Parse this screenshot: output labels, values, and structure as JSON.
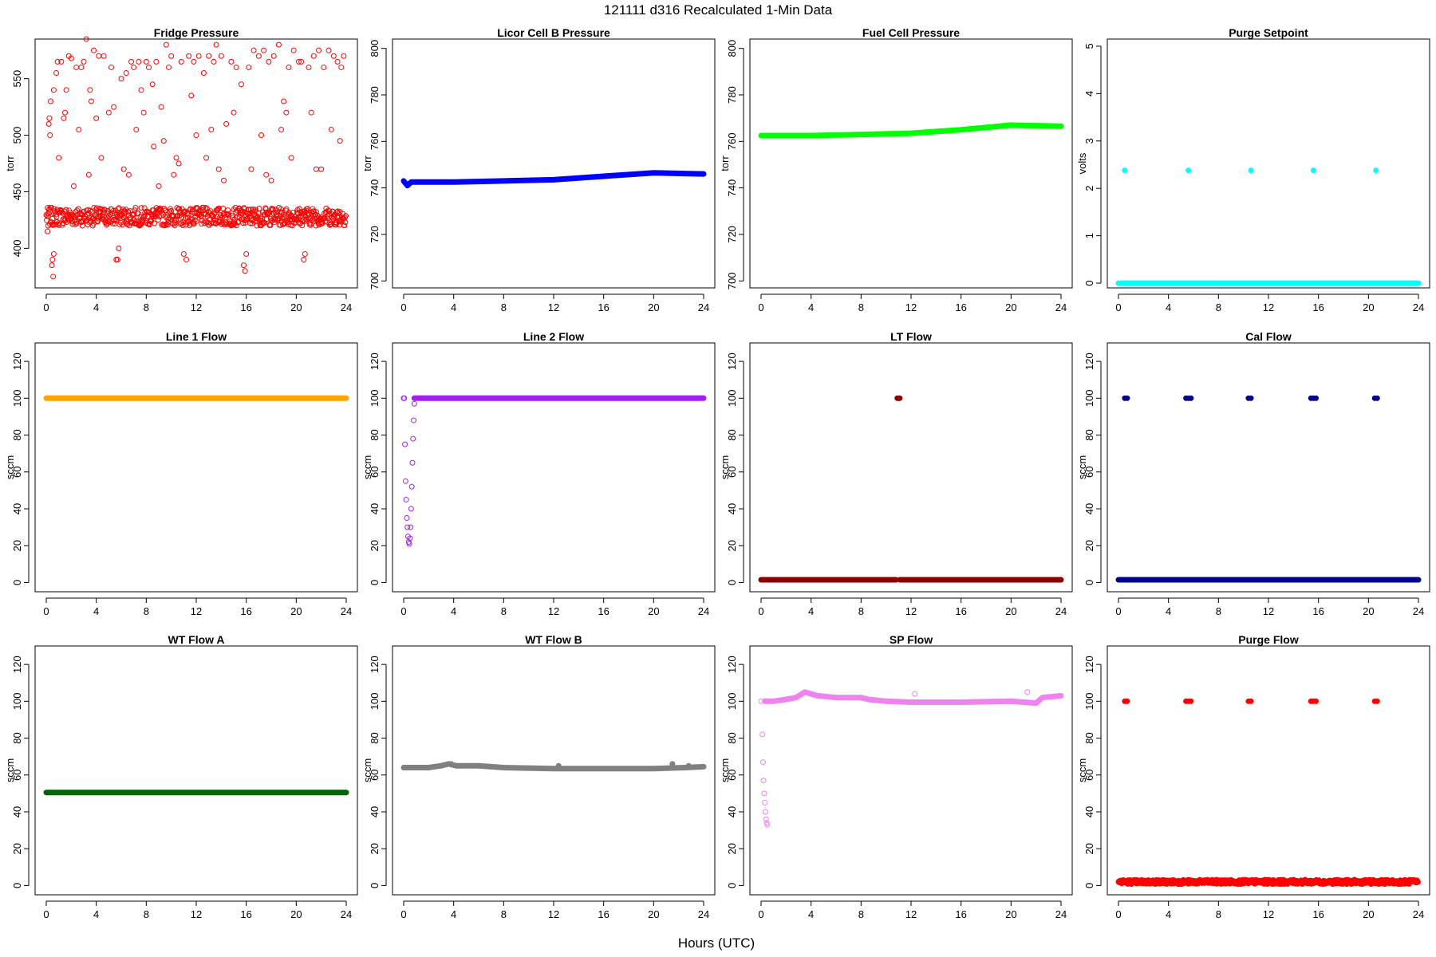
{
  "figure": {
    "title": "121111    d316    Recalculated 1-Min Data",
    "xlabel": "Hours (UTC)"
  },
  "chart_data": [
    {
      "type": "scatter",
      "title": "Fridge Pressure",
      "ylabel": "torr",
      "color": "#ff0000",
      "marker": "open",
      "xlim": [
        0,
        24
      ],
      "ylim": [
        365,
        585
      ],
      "xticks": [
        0,
        4,
        8,
        12,
        16,
        20,
        24
      ],
      "yticks": [
        400,
        450,
        500,
        550
      ],
      "segments": [
        {
          "x0": 0,
          "x1": 24,
          "y": 428,
          "spread": 8
        }
      ],
      "points": [
        [
          0.1,
          415
        ],
        [
          0.15,
          420
        ],
        [
          0.2,
          510
        ],
        [
          0.25,
          515
        ],
        [
          0.3,
          500
        ],
        [
          0.35,
          530
        ],
        [
          0.45,
          385
        ],
        [
          0.5,
          390
        ],
        [
          0.55,
          375
        ],
        [
          0.6,
          395
        ],
        [
          0.6,
          540
        ],
        [
          0.8,
          555
        ],
        [
          0.9,
          565
        ],
        [
          1.2,
          565
        ],
        [
          1.5,
          520
        ],
        [
          1.6,
          540
        ],
        [
          1.8,
          570
        ],
        [
          2.0,
          568
        ],
        [
          2.4,
          560
        ],
        [
          2.8,
          560
        ],
        [
          3.0,
          565
        ],
        [
          3.2,
          585
        ],
        [
          3.5,
          540
        ],
        [
          3.8,
          575
        ],
        [
          4.0,
          515
        ],
        [
          4.2,
          570
        ],
        [
          4.6,
          570
        ],
        [
          5.0,
          520
        ],
        [
          5.2,
          560
        ],
        [
          5.6,
          390
        ],
        [
          5.7,
          390
        ],
        [
          5.8,
          400
        ],
        [
          6.0,
          550
        ],
        [
          6.4,
          555
        ],
        [
          6.8,
          565
        ],
        [
          7.0,
          560
        ],
        [
          7.4,
          565
        ],
        [
          7.8,
          520
        ],
        [
          8.0,
          565
        ],
        [
          8.2,
          560
        ],
        [
          8.5,
          545
        ],
        [
          8.8,
          565
        ],
        [
          9.2,
          525
        ],
        [
          9.6,
          580
        ],
        [
          9.8,
          560
        ],
        [
          10.0,
          570
        ],
        [
          10.4,
          480
        ],
        [
          10.8,
          565
        ],
        [
          11.2,
          390
        ],
        [
          11.0,
          395
        ],
        [
          11.4,
          570
        ],
        [
          11.8,
          565
        ],
        [
          12.2,
          570
        ],
        [
          12.6,
          555
        ],
        [
          13.0,
          570
        ],
        [
          13.4,
          565
        ],
        [
          13.6,
          580
        ],
        [
          14.0,
          570
        ],
        [
          14.4,
          510
        ],
        [
          14.8,
          565
        ],
        [
          15.2,
          560
        ],
        [
          15.8,
          385
        ],
        [
          15.9,
          380
        ],
        [
          16.0,
          395
        ],
        [
          16.2,
          560
        ],
        [
          16.6,
          575
        ],
        [
          17.0,
          570
        ],
        [
          17.4,
          575
        ],
        [
          17.8,
          565
        ],
        [
          18.2,
          570
        ],
        [
          18.6,
          580
        ],
        [
          19.0,
          530
        ],
        [
          19.4,
          560
        ],
        [
          19.8,
          575
        ],
        [
          20.2,
          565
        ],
        [
          20.4,
          565
        ],
        [
          20.6,
          390
        ],
        [
          20.7,
          395
        ],
        [
          21.0,
          560
        ],
        [
          21.4,
          570
        ],
        [
          21.8,
          575
        ],
        [
          22.2,
          560
        ],
        [
          22.6,
          575
        ],
        [
          23.0,
          570
        ],
        [
          23.3,
          565
        ],
        [
          23.6,
          560
        ],
        [
          23.8,
          570
        ],
        [
          1.0,
          480
        ],
        [
          2.2,
          455
        ],
        [
          2.6,
          505
        ],
        [
          3.6,
          530
        ],
        [
          4.4,
          480
        ],
        [
          6.2,
          470
        ],
        [
          7.2,
          505
        ],
        [
          8.6,
          490
        ],
        [
          9.0,
          455
        ],
        [
          9.4,
          495
        ],
        [
          10.6,
          475
        ],
        [
          12.0,
          500
        ],
        [
          12.8,
          480
        ],
        [
          13.2,
          505
        ],
        [
          14.2,
          460
        ],
        [
          15.0,
          520
        ],
        [
          16.4,
          470
        ],
        [
          17.2,
          500
        ],
        [
          18.0,
          460
        ],
        [
          18.8,
          505
        ],
        [
          19.6,
          480
        ],
        [
          21.2,
          520
        ],
        [
          22.0,
          470
        ],
        [
          22.8,
          505
        ],
        [
          23.5,
          495
        ],
        [
          1.4,
          515
        ],
        [
          5.4,
          525
        ],
        [
          7.6,
          540
        ],
        [
          11.6,
          535
        ],
        [
          15.6,
          545
        ],
        [
          19.2,
          520
        ],
        [
          3.4,
          465
        ],
        [
          6.6,
          465
        ],
        [
          10.2,
          465
        ],
        [
          13.8,
          470
        ],
        [
          17.6,
          465
        ],
        [
          21.6,
          470
        ]
      ]
    },
    {
      "type": "scatter",
      "title": "Licor Cell B Pressure",
      "ylabel": "torr",
      "color": "#0000ff",
      "marker": "filled",
      "xlim": [
        0,
        24
      ],
      "ylim": [
        697,
        804
      ],
      "xticks": [
        0,
        4,
        8,
        12,
        16,
        20,
        24
      ],
      "yticks": [
        700,
        720,
        740,
        760,
        780,
        800
      ],
      "line": [
        [
          0,
          743
        ],
        [
          0.3,
          741
        ],
        [
          0.6,
          742.5
        ],
        [
          4,
          742.5
        ],
        [
          8,
          743
        ],
        [
          12,
          743.5
        ],
        [
          16,
          745
        ],
        [
          20,
          746.5
        ],
        [
          24,
          746
        ]
      ],
      "points": []
    },
    {
      "type": "scatter",
      "title": "Fuel Cell Pressure",
      "ylabel": "torr",
      "color": "#00ff00",
      "marker": "filled",
      "xlim": [
        0,
        24
      ],
      "ylim": [
        697,
        804
      ],
      "xticks": [
        0,
        4,
        8,
        12,
        16,
        20,
        24
      ],
      "yticks": [
        700,
        720,
        740,
        760,
        780,
        800
      ],
      "line": [
        [
          0,
          762.5
        ],
        [
          4,
          762.5
        ],
        [
          8,
          763
        ],
        [
          12,
          763.5
        ],
        [
          16,
          765
        ],
        [
          20,
          767
        ],
        [
          24,
          766.5
        ]
      ],
      "points": []
    },
    {
      "type": "scatter",
      "title": "Purge Setpoint",
      "ylabel": "volts",
      "color": "#00ffff",
      "marker": "filled",
      "xlim": [
        0,
        24
      ],
      "ylim": [
        -0.1,
        5.15
      ],
      "xticks": [
        0,
        4,
        8,
        12,
        16,
        20,
        24
      ],
      "yticks": [
        0,
        1,
        2,
        3,
        4,
        5
      ],
      "line": [
        [
          0,
          0
        ],
        [
          24,
          0
        ]
      ],
      "points": [
        [
          0.5,
          2.38
        ],
        [
          5.6,
          2.38
        ],
        [
          10.6,
          2.38
        ],
        [
          15.6,
          2.38
        ],
        [
          20.6,
          2.38
        ]
      ]
    },
    {
      "type": "scatter",
      "title": "Line 1 Flow",
      "ylabel": "sccm",
      "color": "#ffa500",
      "marker": "filled",
      "xlim": [
        0,
        24
      ],
      "ylim": [
        -5,
        130
      ],
      "xticks": [
        0,
        4,
        8,
        12,
        16,
        20,
        24
      ],
      "yticks": [
        0,
        20,
        40,
        60,
        80,
        100,
        120
      ],
      "line": [
        [
          0,
          100
        ],
        [
          24,
          100
        ]
      ],
      "points": []
    },
    {
      "type": "scatter",
      "title": "Line 2 Flow",
      "ylabel": "sccm",
      "color": "#a020f0",
      "marker": "open",
      "xlim": [
        0,
        24
      ],
      "ylim": [
        -5,
        130
      ],
      "xticks": [
        0,
        4,
        8,
        12,
        16,
        20,
        24
      ],
      "yticks": [
        0,
        20,
        40,
        60,
        80,
        100,
        120
      ],
      "line": [
        [
          0.85,
          100
        ],
        [
          24,
          100
        ]
      ],
      "points": [
        [
          0,
          100
        ],
        [
          0.05,
          100
        ],
        [
          0.1,
          75
        ],
        [
          0.15,
          55
        ],
        [
          0.2,
          45
        ],
        [
          0.25,
          35
        ],
        [
          0.3,
          30
        ],
        [
          0.35,
          25
        ],
        [
          0.4,
          22
        ],
        [
          0.45,
          21
        ],
        [
          0.5,
          24
        ],
        [
          0.55,
          30
        ],
        [
          0.6,
          40
        ],
        [
          0.65,
          52
        ],
        [
          0.7,
          65
        ],
        [
          0.75,
          78
        ],
        [
          0.8,
          88
        ],
        [
          0.85,
          97
        ]
      ]
    },
    {
      "type": "scatter",
      "title": "LT Flow",
      "ylabel": "sccm",
      "color": "#8b0000",
      "marker": "filled",
      "xlim": [
        0,
        24
      ],
      "ylim": [
        -5,
        130
      ],
      "xticks": [
        0,
        4,
        8,
        12,
        16,
        20,
        24
      ],
      "yticks": [
        0,
        20,
        40,
        60,
        80,
        100,
        120
      ],
      "segments": [
        {
          "x0": 0,
          "x1": 10.8,
          "y": 1.5,
          "spread": 0
        },
        {
          "x0": 11.1,
          "x1": 24,
          "y": 1.5,
          "spread": 0
        }
      ],
      "points": [
        [
          10.9,
          100
        ],
        [
          11.0,
          100
        ],
        [
          11.1,
          100
        ]
      ]
    },
    {
      "type": "scatter",
      "title": "Cal Flow",
      "ylabel": "sccm",
      "color": "#00008b",
      "marker": "filled",
      "xlim": [
        0,
        24
      ],
      "ylim": [
        -5,
        130
      ],
      "xticks": [
        0,
        4,
        8,
        12,
        16,
        20,
        24
      ],
      "yticks": [
        0,
        20,
        40,
        60,
        80,
        100,
        120
      ],
      "line": [
        [
          0,
          1.5
        ],
        [
          24,
          1.5
        ]
      ],
      "points": [
        [
          0.5,
          100
        ],
        [
          0.7,
          100
        ],
        [
          5.4,
          100
        ],
        [
          5.6,
          100
        ],
        [
          5.8,
          100
        ],
        [
          10.4,
          100
        ],
        [
          10.6,
          100
        ],
        [
          15.4,
          100
        ],
        [
          15.6,
          100
        ],
        [
          15.8,
          100
        ],
        [
          20.5,
          100
        ],
        [
          20.7,
          100
        ]
      ]
    },
    {
      "type": "scatter",
      "title": "WT Flow A",
      "ylabel": "sccm",
      "color": "#006400",
      "marker": "filled",
      "xlim": [
        0,
        24
      ],
      "ylim": [
        -5,
        130
      ],
      "xticks": [
        0,
        4,
        8,
        12,
        16,
        20,
        24
      ],
      "yticks": [
        0,
        20,
        40,
        60,
        80,
        100,
        120
      ],
      "line": [
        [
          0,
          50.5
        ],
        [
          24,
          50.5
        ]
      ],
      "points": []
    },
    {
      "type": "scatter",
      "title": "WT Flow B",
      "ylabel": "sccm",
      "color": "#808080",
      "marker": "filled",
      "xlim": [
        0,
        24
      ],
      "ylim": [
        -5,
        130
      ],
      "xticks": [
        0,
        4,
        8,
        12,
        16,
        20,
        24
      ],
      "yticks": [
        0,
        20,
        40,
        60,
        80,
        100,
        120
      ],
      "line": [
        [
          0,
          64
        ],
        [
          2,
          64
        ],
        [
          3,
          65
        ],
        [
          3.6,
          66
        ],
        [
          4.2,
          65
        ],
        [
          6,
          65
        ],
        [
          8,
          64
        ],
        [
          12,
          63.5
        ],
        [
          16,
          63.5
        ],
        [
          20,
          63.5
        ],
        [
          22.5,
          64
        ],
        [
          24,
          64.5
        ]
      ],
      "points": [
        [
          3.8,
          66
        ],
        [
          12.4,
          65
        ],
        [
          21.5,
          66
        ],
        [
          22.8,
          65
        ]
      ]
    },
    {
      "type": "scatter",
      "title": "SP Flow",
      "ylabel": "sccm",
      "color": "#ee82ee",
      "marker": "open",
      "xlim": [
        0,
        24
      ],
      "ylim": [
        -5,
        130
      ],
      "xticks": [
        0,
        4,
        8,
        12,
        16,
        20,
        24
      ],
      "yticks": [
        0,
        20,
        40,
        60,
        80,
        100,
        120
      ],
      "line": [
        [
          0.3,
          100
        ],
        [
          1,
          100
        ],
        [
          2,
          101
        ],
        [
          2.8,
          102
        ],
        [
          3.5,
          105
        ],
        [
          4.5,
          103
        ],
        [
          6,
          102
        ],
        [
          8,
          102
        ],
        [
          8.6,
          101
        ],
        [
          10,
          100
        ],
        [
          12,
          99.5
        ],
        [
          16,
          99.5
        ],
        [
          20,
          100
        ],
        [
          22,
          99
        ],
        [
          22.5,
          102
        ],
        [
          24,
          103
        ]
      ],
      "points": [
        [
          0,
          100
        ],
        [
          0.1,
          82
        ],
        [
          0.15,
          67
        ],
        [
          0.2,
          57
        ],
        [
          0.25,
          50
        ],
        [
          0.3,
          45
        ],
        [
          0.35,
          40
        ],
        [
          0.4,
          36
        ],
        [
          0.45,
          34
        ],
        [
          0.5,
          33
        ],
        [
          12.3,
          104
        ],
        [
          21.3,
          105
        ]
      ]
    },
    {
      "type": "scatter",
      "title": "Purge Flow",
      "ylabel": "sccm",
      "color": "#ff0000",
      "marker": "filled",
      "xlim": [
        0,
        24
      ],
      "ylim": [
        -5,
        130
      ],
      "xticks": [
        0,
        4,
        8,
        12,
        16,
        20,
        24
      ],
      "yticks": [
        0,
        20,
        40,
        60,
        80,
        100,
        120
      ],
      "segments": [
        {
          "x0": 0,
          "x1": 24,
          "y": 2,
          "spread": 1.2
        }
      ],
      "points": [
        [
          0.5,
          100
        ],
        [
          0.7,
          100
        ],
        [
          5.4,
          100
        ],
        [
          5.6,
          100
        ],
        [
          5.8,
          100
        ],
        [
          10.4,
          100
        ],
        [
          10.6,
          100
        ],
        [
          15.4,
          100
        ],
        [
          15.6,
          100
        ],
        [
          15.8,
          100
        ],
        [
          20.5,
          100
        ],
        [
          20.7,
          100
        ]
      ]
    }
  ]
}
